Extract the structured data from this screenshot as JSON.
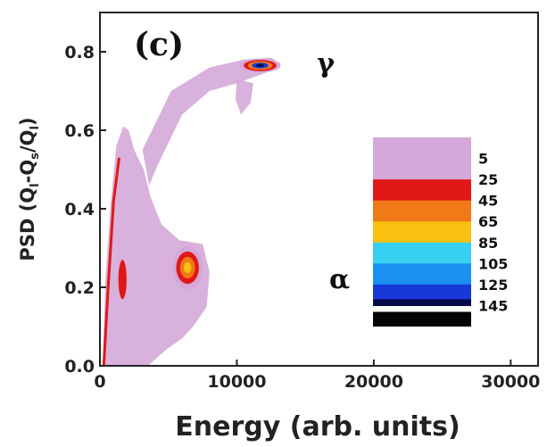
{
  "chart_data": {
    "type": "heatmap",
    "panel_label": "(c)",
    "xlabel": "Energy (arb. units)",
    "ylabel": {
      "main": "PSD (Q",
      "sub1": "l",
      "mid": "-Q",
      "sub2": "s",
      "mid2": "/Q",
      "sub3": "l",
      "end": ")"
    },
    "xlim": [
      0,
      32000
    ],
    "ylim": [
      0,
      0.9
    ],
    "x_ticks": [
      0,
      10000,
      20000,
      30000
    ],
    "y_ticks": [
      0.0,
      0.2,
      0.4,
      0.6,
      0.8
    ],
    "x_tick_labels": [
      "0",
      "10000",
      "20000",
      "30000"
    ],
    "y_tick_labels": [
      "0.0",
      "0.2",
      "0.4",
      "0.6",
      "0.8"
    ],
    "annotations": [
      {
        "text": "γ",
        "x": 16500,
        "y": 0.77
      },
      {
        "text": "α",
        "x": 17500,
        "y": 0.22
      }
    ],
    "colorbar": {
      "levels": [
        "5",
        "25",
        "45",
        "65",
        "85",
        "105",
        "125",
        "145"
      ],
      "colors": [
        "#d4a8d8",
        "#e01818",
        "#f07a18",
        "#f8c010",
        "#38d0f0",
        "#1a90f0",
        "#1838d8",
        "#060a48"
      ],
      "top_color": "#d4a8d8",
      "bottom_color": "#050505"
    },
    "regions": [
      {
        "name": "gamma band",
        "level": 5,
        "points": [
          [
            3100,
            0.55
          ],
          [
            5200,
            0.7
          ],
          [
            8000,
            0.76
          ],
          [
            10500,
            0.78
          ],
          [
            12500,
            0.785
          ],
          [
            13200,
            0.77
          ],
          [
            12000,
            0.745
          ],
          [
            10000,
            0.72
          ],
          [
            8000,
            0.7
          ],
          [
            6000,
            0.64
          ],
          [
            4200,
            0.51
          ],
          [
            3600,
            0.46
          ]
        ]
      },
      {
        "name": "gamma tail",
        "level": 5,
        "points": [
          [
            10000,
            0.73
          ],
          [
            11200,
            0.72
          ],
          [
            11000,
            0.67
          ],
          [
            10300,
            0.64
          ],
          [
            9900,
            0.68
          ]
        ]
      },
      {
        "name": "alpha band",
        "level": 5,
        "points": [
          [
            200,
            0.0
          ],
          [
            400,
            0.22
          ],
          [
            800,
            0.42
          ],
          [
            1200,
            0.56
          ],
          [
            1700,
            0.61
          ],
          [
            2100,
            0.6
          ],
          [
            2500,
            0.55
          ],
          [
            3200,
            0.5
          ],
          [
            3700,
            0.43
          ],
          [
            4500,
            0.36
          ],
          [
            5800,
            0.32
          ],
          [
            7500,
            0.31
          ],
          [
            8000,
            0.24
          ],
          [
            7800,
            0.15
          ],
          [
            6800,
            0.1
          ],
          [
            6000,
            0.07
          ],
          [
            4800,
            0.04
          ],
          [
            3500,
            0.0
          ]
        ]
      }
    ],
    "spots": [
      {
        "name": "gamma peak",
        "x": 11700,
        "y": 0.765,
        "rx": 1500,
        "ry": 0.018,
        "levels": [
          5,
          25,
          45,
          125,
          145
        ]
      },
      {
        "name": "alpha peak",
        "x": 6400,
        "y": 0.25,
        "rx": 1100,
        "ry": 0.055,
        "levels": [
          5,
          25,
          45,
          65
        ]
      },
      {
        "name": "low-energy streak",
        "x": 1650,
        "y": 0.22,
        "rx": 300,
        "ry": 0.05,
        "levels": [
          25
        ]
      }
    ],
    "line": {
      "name": "edge line",
      "level": 25,
      "points": [
        [
          280,
          0.0
        ],
        [
          600,
          0.2
        ],
        [
          1000,
          0.42
        ],
        [
          1400,
          0.53
        ]
      ]
    }
  }
}
